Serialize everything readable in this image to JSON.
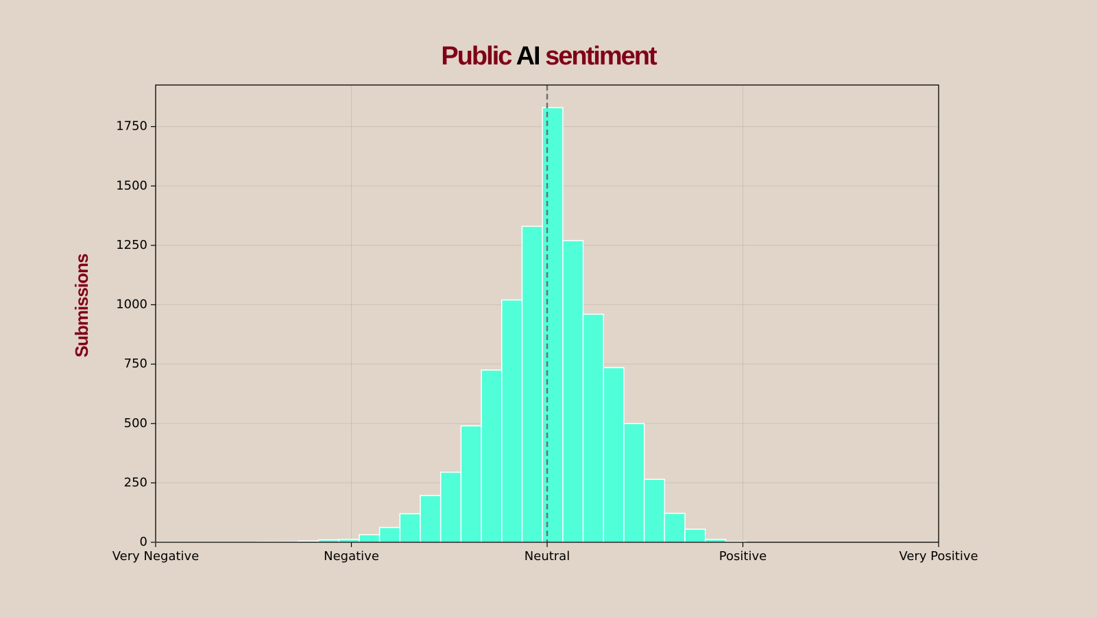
{
  "chart_data": {
    "type": "histogram",
    "title_parts": [
      "Public",
      "AI",
      "sentiment"
    ],
    "title_colors": [
      "#800018",
      "#000000",
      "#800018"
    ],
    "ylabel": "Submissions",
    "bins": [
      -1,
      -0.948,
      -0.896,
      -0.844,
      -0.792,
      -0.74,
      -0.688,
      -0.636,
      -0.584,
      -0.532,
      -0.48,
      -0.428,
      -0.376,
      -0.324,
      -0.272,
      -0.22,
      -0.168,
      -0.116,
      -0.064,
      -0.012,
      0.04,
      0.092,
      0.144,
      0.196,
      0.248,
      0.3,
      0.352,
      0.404,
      0.456,
      0.508
    ],
    "values": [
      1,
      1,
      1,
      1,
      1,
      2,
      2,
      5,
      10,
      12,
      32,
      62,
      120,
      197,
      295,
      490,
      725,
      1020,
      1330,
      1830,
      1270,
      960,
      735,
      500,
      265,
      122,
      55,
      12,
      3
    ],
    "color": "#50ffd8",
    "edgecolor": "#ffffff",
    "xlim": [
      -1,
      1
    ],
    "xticks": [
      {
        "value": -1,
        "label": "Very Negative"
      },
      {
        "value": -0.5,
        "label": "Negative"
      },
      {
        "value": 0,
        "label": "Neutral"
      },
      {
        "value": 0.5,
        "label": "Positive"
      },
      {
        "value": 1,
        "label": "Very Positive"
      }
    ],
    "ylim": [
      0,
      1925
    ],
    "yticks": [
      0,
      250,
      500,
      750,
      1000,
      1250,
      1500,
      1750
    ],
    "vline": 0,
    "grid": true
  }
}
